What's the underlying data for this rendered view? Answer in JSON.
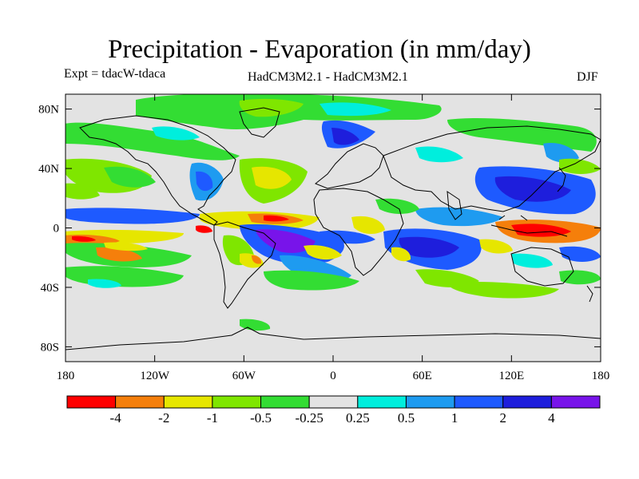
{
  "header": {
    "title": "Precipitation - Evaporation (in mm/day)",
    "experiment": "Expt = tdacW-tdaca",
    "models": "HadCM3M2.1 - HadCM3M2.1",
    "season": "DJF"
  },
  "axes": {
    "lat_ticks": [
      "80N",
      "40N",
      "0",
      "40S",
      "80S"
    ],
    "lat_values": [
      80,
      40,
      0,
      -40,
      -80
    ],
    "lon_ticks": [
      "180",
      "120W",
      "60W",
      "0",
      "60E",
      "120E",
      "180"
    ],
    "lon_values": [
      -180,
      -120,
      -60,
      0,
      60,
      120,
      180
    ],
    "lat_range": [
      -90,
      90
    ],
    "lon_range": [
      -180,
      180
    ]
  },
  "colorbar": {
    "labels": [
      "-4",
      "-2",
      "-1",
      "-0.5",
      "-0.25",
      "0.25",
      "0.5",
      "1",
      "2",
      "4"
    ],
    "colors": [
      "#ff0000",
      "#f57f0b",
      "#e6e600",
      "#7fe600",
      "#33dd33",
      "#e3e3e3",
      "#00eedd",
      "#1e9bf0",
      "#1e5aff",
      "#1e1edc",
      "#7814ea"
    ]
  },
  "colors": {
    "background": "#e3e3e3",
    "coast": "#000000"
  }
}
